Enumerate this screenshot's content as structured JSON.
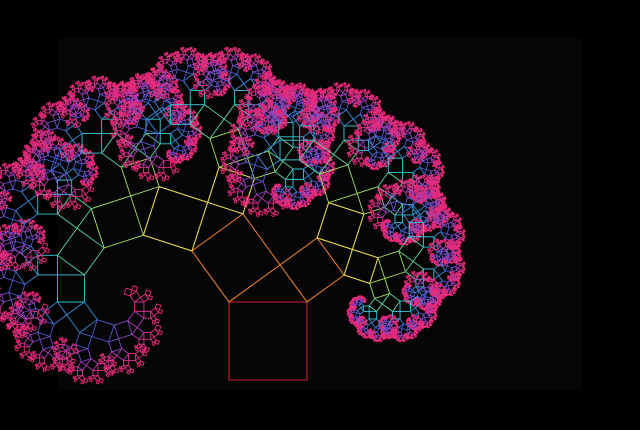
{
  "image": {
    "subject": "pythagoras-tree-fractal",
    "background_color": "#000000",
    "panel_color": "#050505",
    "depth_levels": 13,
    "lean_angle_degrees": 36,
    "palette": [
      "#c8262a",
      "#e07a2a",
      "#e8d84a",
      "#a8e060",
      "#5ad8a0",
      "#38c8d8",
      "#3a8ad8",
      "#4a5ad0",
      "#7a4ac8",
      "#b03ab8",
      "#d8308a",
      "#e0307a",
      "#e8287a"
    ]
  }
}
